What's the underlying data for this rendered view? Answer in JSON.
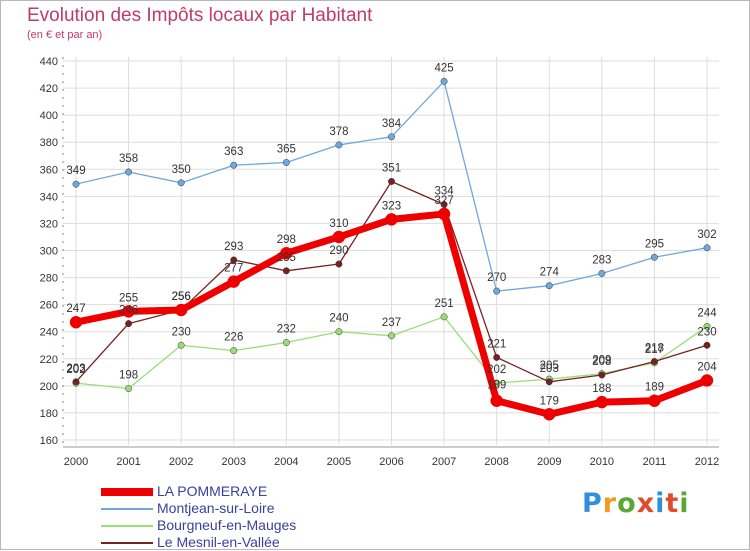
{
  "colors": {
    "la_pommeraye": "#ee0000",
    "montjean": "#6fa8dc",
    "bourgneuf": "#99dd77",
    "le_mesnil": "#772222",
    "title": "#c03a6a",
    "legend_text": "#3a3fa0"
  },
  "logo": {
    "text": "Proxiti"
  },
  "chart_data": {
    "type": "line",
    "title": "Evolution des Impôts locaux par Habitant",
    "subtitle": "(en € et par an)",
    "xlabel": "",
    "ylabel": "",
    "ylim": [
      160,
      440
    ],
    "yticks": [
      160,
      180,
      200,
      220,
      240,
      260,
      280,
      300,
      320,
      340,
      360,
      380,
      400,
      420,
      440
    ],
    "x": [
      "2000",
      "2001",
      "2002",
      "2003",
      "2004",
      "2005",
      "2006",
      "2007",
      "2008",
      "2009",
      "2010",
      "2011",
      "2012"
    ],
    "grid": true,
    "legend_position": "bottom-left",
    "series": [
      {
        "name": "Montjean-sur-Loire",
        "key": "montjean",
        "values": [
          349,
          358,
          350,
          363,
          365,
          378,
          384,
          425,
          270,
          274,
          283,
          295,
          302
        ]
      },
      {
        "name": "Bourgneuf-en-Mauges",
        "key": "bourgneuf",
        "values": [
          202,
          198,
          230,
          226,
          232,
          240,
          237,
          251,
          202,
          205,
          209,
          217,
          244
        ]
      },
      {
        "name": "Le Mesnil-en-Vallée",
        "key": "le_mesnil",
        "values": [
          203,
          246,
          256,
          293,
          285,
          290,
          351,
          334,
          221,
          203,
          208,
          218,
          230
        ]
      },
      {
        "name": "LA POMMERAYE",
        "key": "la_pommeraye",
        "values": [
          247,
          255,
          256,
          277,
          298,
          310,
          323,
          327,
          189,
          179,
          188,
          189,
          204
        ]
      }
    ],
    "legend_order": [
      "la_pommeraye",
      "montjean",
      "bourgneuf",
      "le_mesnil"
    ]
  }
}
